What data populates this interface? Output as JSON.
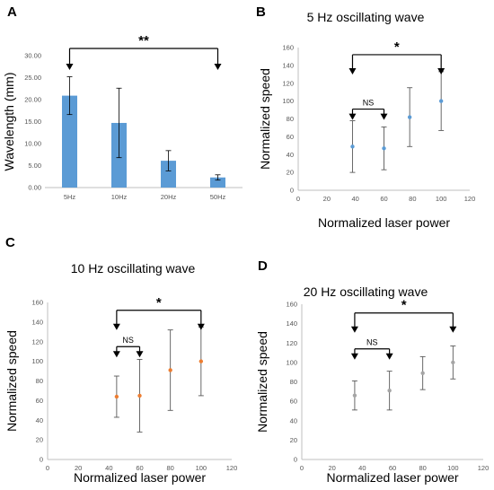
{
  "chart_data": [
    {
      "panel": "A",
      "type": "bar",
      "title": "",
      "ylabel": "Wavelength (mm)",
      "xlabel": "",
      "categories": [
        "5Hz",
        "10Hz",
        "20Hz",
        "50Hz"
      ],
      "values": [
        20.9,
        14.7,
        6.1,
        2.3
      ],
      "errors": [
        4.3,
        7.9,
        2.3,
        0.6
      ],
      "ylim": [
        0,
        30
      ],
      "yticks": [
        "0.00",
        "5.00",
        "10.00",
        "15.00",
        "20.00",
        "25.00",
        "30.00"
      ],
      "bar_color": "#5b9bd5",
      "annotations": [
        {
          "label": "**",
          "from": "5Hz",
          "to": "50Hz"
        }
      ]
    },
    {
      "panel": "B",
      "type": "scatter",
      "title": "5 Hz oscillating wave",
      "xlabel": "Normalized laser power",
      "ylabel": "Normalized speed",
      "xlim": [
        0,
        120
      ],
      "ylim": [
        0,
        160
      ],
      "xticks": [
        "0",
        "20",
        "40",
        "60",
        "80",
        "100",
        "120"
      ],
      "yticks": [
        "0",
        "20",
        "40",
        "60",
        "80",
        "100",
        "120",
        "140",
        "160"
      ],
      "marker_color": "#5b9bd5",
      "x": [
        38,
        60,
        78,
        100
      ],
      "y": [
        49,
        47,
        82,
        100
      ],
      "err": [
        29,
        24,
        33,
        33
      ],
      "annotations": [
        {
          "label": "NS",
          "from": 38,
          "to": 60,
          "level": 91
        },
        {
          "label": "*",
          "from": 38,
          "to": 100,
          "level": 152
        }
      ]
    },
    {
      "panel": "C",
      "type": "scatter",
      "title": "10 Hz oscillating wave",
      "xlabel": "Normalized laser power",
      "ylabel": "Normalized speed",
      "xlim": [
        0,
        120
      ],
      "ylim": [
        0,
        160
      ],
      "xticks": [
        "0",
        "20",
        "40",
        "60",
        "80",
        "100",
        "120"
      ],
      "yticks": [
        "0",
        "20",
        "40",
        "60",
        "80",
        "100",
        "120",
        "140",
        "160"
      ],
      "marker_color": "#ed7d31",
      "x": [
        45,
        60,
        80,
        100
      ],
      "y": [
        64,
        65,
        91,
        100
      ],
      "err": [
        21,
        37,
        41,
        35
      ],
      "annotations": [
        {
          "label": "NS",
          "from": 45,
          "to": 60,
          "level": 115
        },
        {
          "label": "*",
          "from": 45,
          "to": 100,
          "level": 152
        }
      ]
    },
    {
      "panel": "D",
      "type": "scatter",
      "title": "20 Hz oscillating wave",
      "xlabel": "Normalized laser power",
      "ylabel": "Normalized speed",
      "xlim": [
        0,
        120
      ],
      "ylim": [
        0,
        160
      ],
      "xticks": [
        "0",
        "20",
        "40",
        "60",
        "80",
        "100",
        "120"
      ],
      "yticks": [
        "0",
        "20",
        "40",
        "60",
        "80",
        "100",
        "120",
        "140",
        "160"
      ],
      "marker_color": "#a5a5a5",
      "x": [
        35,
        58,
        80,
        100
      ],
      "y": [
        66,
        71,
        89,
        100
      ],
      "err": [
        15,
        20,
        17,
        17
      ],
      "annotations": [
        {
          "label": "NS",
          "from": 35,
          "to": 58,
          "level": 114
        },
        {
          "label": "*",
          "from": 35,
          "to": 100,
          "level": 151
        }
      ]
    }
  ]
}
